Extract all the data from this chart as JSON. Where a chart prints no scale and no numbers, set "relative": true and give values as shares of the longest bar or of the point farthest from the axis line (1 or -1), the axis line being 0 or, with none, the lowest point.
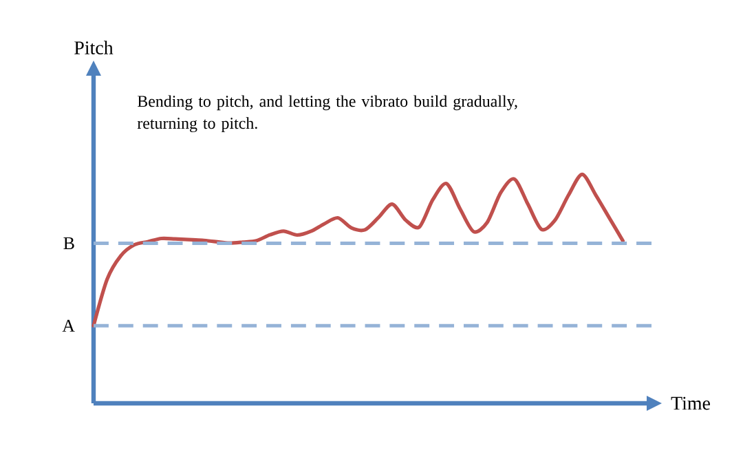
{
  "chart_data": {
    "type": "line",
    "relative": true,
    "xlabel": "Time",
    "annotations": [
      "Bending to pitch, and letting the vibrato build gradually, returning to pitch.",
      "Pitch"
    ],
    "categories": [
      null,
      null,
      null,
      null,
      null,
      null,
      null,
      null,
      null,
      null,
      null,
      null,
      null,
      null,
      null,
      null,
      null,
      null,
      null,
      null,
      null,
      null,
      null,
      null,
      null,
      null,
      null,
      null,
      null,
      null,
      null,
      null,
      null,
      null,
      null,
      null,
      null,
      null,
      null,
      null
    ],
    "series": [
      {
        "color": "#c0504d",
        "values": [
          0.339,
          0.542,
          0.644,
          0.692,
          0.706,
          0.72,
          0.718,
          0.715,
          0.712,
          0.706,
          0.7,
          0.704,
          0.71,
          0.736,
          0.752,
          0.735,
          0.751,
          0.784,
          0.81,
          0.766,
          0.758,
          0.812,
          0.87,
          0.8,
          0.77,
          0.89,
          0.96,
          0.85,
          0.75,
          0.79,
          0.92,
          0.98,
          0.87,
          0.76,
          0.8,
          0.91,
          1.0,
          0.91,
          0.81,
          0.71
        ]
      }
    ],
    "ref_lines": [
      {
        "axis": "y",
        "value": 0.339,
        "label": "A",
        "color": "#95b3d7",
        "line_style": "dashed"
      },
      {
        "axis": "y",
        "value": 0.699,
        "label": "B",
        "color": "#95b3d7",
        "line_style": "dashed"
      }
    ],
    "marker": "none",
    "line_style": "solid"
  }
}
